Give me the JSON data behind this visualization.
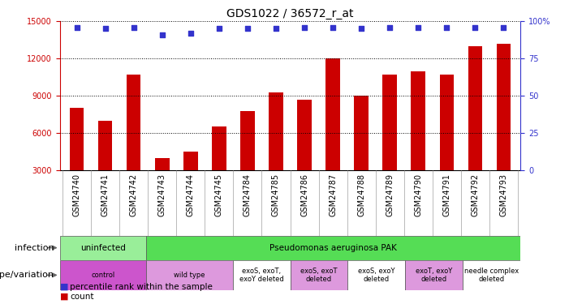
{
  "title": "GDS1022 / 36572_r_at",
  "samples": [
    "GSM24740",
    "GSM24741",
    "GSM24742",
    "GSM24743",
    "GSM24744",
    "GSM24745",
    "GSM24784",
    "GSM24785",
    "GSM24786",
    "GSM24787",
    "GSM24788",
    "GSM24789",
    "GSM24790",
    "GSM24791",
    "GSM24792",
    "GSM24793"
  ],
  "counts": [
    8000,
    7000,
    10700,
    4000,
    4500,
    6500,
    7800,
    9300,
    8700,
    12000,
    9000,
    10700,
    11000,
    10700,
    13000,
    13200
  ],
  "percentiles": [
    96,
    95,
    96,
    91,
    92,
    95,
    95,
    95,
    96,
    96,
    95,
    96,
    96,
    96,
    96,
    96
  ],
  "bar_color": "#cc0000",
  "dot_color": "#3333cc",
  "left_axis_color": "#cc0000",
  "right_axis_color": "#3333cc",
  "ylim_left": [
    3000,
    15000
  ],
  "yticks_left": [
    3000,
    6000,
    9000,
    12000,
    15000
  ],
  "ylim_right": [
    0,
    100
  ],
  "yticks_right": [
    0,
    25,
    50,
    75,
    100
  ],
  "xtick_bg_color": "#cccccc",
  "infection_labels": [
    {
      "text": "uninfected",
      "start": 0,
      "end": 3,
      "color": "#99ee99"
    },
    {
      "text": "Pseudomonas aeruginosa PAK",
      "start": 3,
      "end": 16,
      "color": "#55dd55"
    }
  ],
  "genotype_labels": [
    {
      "text": "control",
      "start": 0,
      "end": 3,
      "color": "#cc55cc"
    },
    {
      "text": "wild type",
      "start": 3,
      "end": 6,
      "color": "#dd99dd"
    },
    {
      "text": "exoS, exoT,\nexoY deleted",
      "start": 6,
      "end": 8,
      "color": "#ffffff"
    },
    {
      "text": "exoS, exoT\ndeleted",
      "start": 8,
      "end": 10,
      "color": "#dd99dd"
    },
    {
      "text": "exoS, exoY\ndeleted",
      "start": 10,
      "end": 12,
      "color": "#ffffff"
    },
    {
      "text": "exoT, exoY\ndeleted",
      "start": 12,
      "end": 14,
      "color": "#dd99dd"
    },
    {
      "text": "needle complex\ndeleted",
      "start": 14,
      "end": 16,
      "color": "#ffffff"
    }
  ],
  "legend_items": [
    {
      "label": "count",
      "color": "#cc0000"
    },
    {
      "label": "percentile rank within the sample",
      "color": "#3333cc"
    }
  ],
  "infection_row_label": "infection",
  "genotype_row_label": "genotype/variation",
  "background_color": "#ffffff",
  "title_fontsize": 10,
  "tick_fontsize": 7,
  "row_label_fontsize": 8,
  "annotation_fontsize": 7.5,
  "legend_fontsize": 7.5
}
